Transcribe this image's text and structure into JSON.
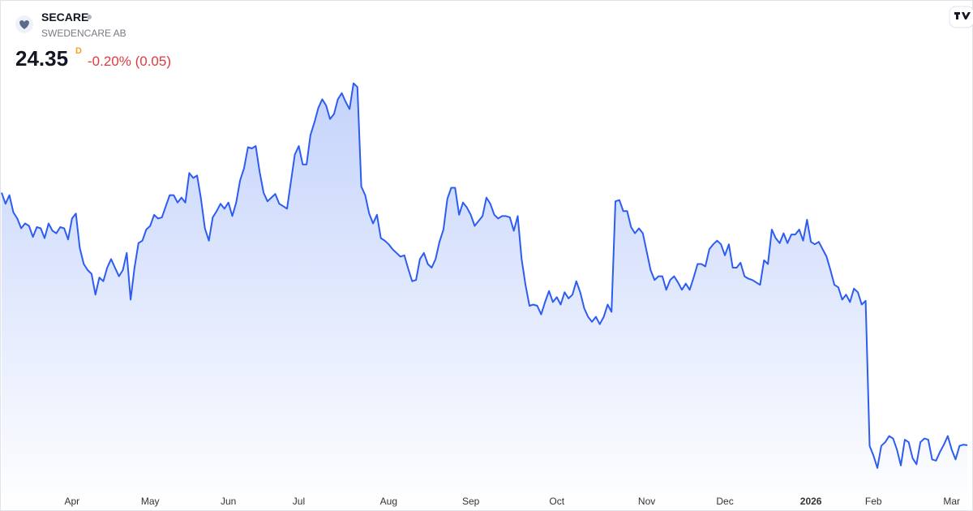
{
  "header": {
    "symbol": "SECARE",
    "name": "SWEDENCARE AB",
    "price": "24.35",
    "price_flag": "D",
    "change": "-0.20% (0.05)"
  },
  "chart_data": {
    "type": "area",
    "series": [
      {
        "color": "#2d5cf2",
        "values": [
          44.9,
          44.0,
          44.7,
          43.3,
          42.8,
          42.0,
          42.4,
          42.2,
          41.3,
          42.1,
          42.0,
          41.2,
          42.4,
          41.8,
          41.6,
          42.1,
          42.0,
          41.1,
          42.8,
          43.2,
          40.4,
          39.1,
          38.6,
          38.3,
          36.6,
          38.0,
          37.7,
          38.8,
          39.5,
          38.8,
          38.1,
          38.6,
          40.0,
          36.2,
          38.8,
          40.8,
          41.0,
          41.9,
          42.2,
          43.1,
          42.8,
          42.9,
          43.8,
          44.7,
          44.7,
          44.1,
          44.5,
          44.1,
          46.5,
          46.1,
          46.3,
          44.4,
          42.0,
          41.0,
          42.9,
          43.4,
          44.0,
          43.6,
          44.1,
          43.0,
          44.1,
          45.9,
          46.9,
          48.6,
          48.5,
          48.7,
          46.6,
          44.9,
          44.2,
          44.5,
          44.8,
          44.0,
          43.8,
          43.6,
          45.8,
          48.0,
          48.7,
          47.2,
          47.2,
          49.6,
          50.6,
          51.8,
          52.5,
          52.0,
          50.9,
          51.3,
          52.5,
          53.0,
          52.3,
          51.7,
          53.8,
          53.5,
          45.4,
          44.7,
          43.2,
          42.4,
          43.1,
          41.2,
          41.0,
          40.7,
          40.3,
          40.0,
          39.7,
          39.8,
          38.7,
          37.7,
          37.8,
          39.5,
          40.0,
          39.1,
          38.8,
          39.5,
          40.9,
          41.9,
          44.4,
          45.3,
          45.3,
          43.1,
          44.1,
          43.7,
          43.1,
          42.2,
          42.6,
          43.0,
          44.5,
          44.0,
          43.1,
          42.8,
          43.0,
          43.0,
          42.9,
          41.8,
          43.0,
          39.5,
          37.4,
          35.7,
          35.8,
          35.7,
          35.0,
          36.0,
          36.9,
          36.0,
          36.4,
          35.8,
          36.8,
          36.3,
          36.6,
          37.7,
          36.8,
          35.5,
          34.8,
          34.4,
          34.8,
          34.2,
          34.8,
          35.8,
          35.2,
          44.2,
          44.3,
          43.4,
          43.4,
          42.1,
          41.6,
          42.0,
          41.6,
          40.1,
          38.6,
          37.8,
          38.1,
          38.1,
          37.0,
          37.8,
          38.1,
          37.6,
          37.0,
          37.5,
          37.0,
          38.0,
          39.1,
          39.1,
          38.9,
          40.3,
          40.7,
          41.0,
          40.7,
          39.8,
          40.7,
          38.8,
          38.8,
          39.2,
          38.1,
          37.9,
          37.8,
          37.6,
          37.4,
          39.4,
          39.1,
          41.9,
          41.2,
          40.8,
          41.6,
          40.8,
          41.5,
          41.5,
          41.9,
          41.0,
          42.7,
          40.9,
          40.7,
          40.9,
          40.3,
          39.7,
          38.6,
          37.4,
          37.2,
          36.2,
          36.6,
          36.0,
          37.1,
          36.8,
          35.8,
          36.1,
          24.3,
          23.5,
          22.5,
          24.3,
          24.6,
          25.1,
          24.9,
          24.0,
          22.7,
          24.8,
          24.6,
          23.3,
          22.8,
          24.6,
          24.9,
          24.8,
          23.2,
          23.1,
          23.8,
          24.4,
          25.1,
          24.0,
          23.2,
          24.3,
          24.4,
          24.35
        ]
      }
    ],
    "ylim": [
      21.31,
      54.64
    ],
    "xticks": [
      {
        "value": 18,
        "label": "Apr"
      },
      {
        "value": 38,
        "label": "May"
      },
      {
        "value": 58,
        "label": "Jun"
      },
      {
        "value": 76,
        "label": "Jul"
      },
      {
        "value": 99,
        "label": "Aug"
      },
      {
        "value": 120,
        "label": "Sep"
      },
      {
        "value": 142,
        "label": "Oct"
      },
      {
        "value": 165,
        "label": "Nov"
      },
      {
        "value": 185,
        "label": "Dec"
      },
      {
        "value": 207,
        "label": "2026"
      },
      {
        "value": 223,
        "label": "Feb"
      },
      {
        "value": 243,
        "label": "Mar"
      }
    ]
  }
}
